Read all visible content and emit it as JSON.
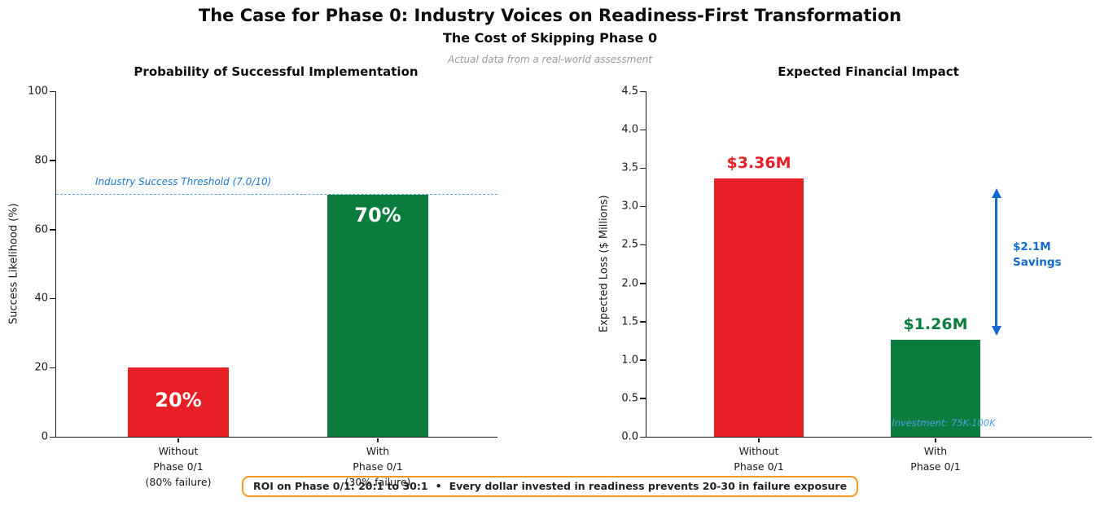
{
  "header": {
    "title": "The Case for Phase 0: Industry Voices on Readiness-First Transformation",
    "subtitle": "The Cost of Skipping Phase 0",
    "note": "Actual data from a real-world assessment"
  },
  "footer": {
    "text_left": "ROI on Phase 0/1: 20:1 to 30:1",
    "separator": "•",
    "text_right": "Every dollar invested in readiness prevents 20-30 in failure exposure",
    "border_color": "#f79820"
  },
  "chart_data": [
    {
      "type": "bar",
      "title": "Probability of Successful Implementation",
      "ylabel": "Success Likelihood (%)",
      "ylim": [
        0,
        100
      ],
      "yticks": [
        "0",
        "20",
        "40",
        "60",
        "80",
        "100"
      ],
      "categories": [
        "Without\nPhase 0/1\n(80% failure)",
        "With\nPhase 0/1\n(30% failure)"
      ],
      "values": [
        20,
        70
      ],
      "bar_labels": [
        "20%",
        "70%"
      ],
      "bar_colors": [
        "#e81e26",
        "#0a7d3e"
      ],
      "grid": false,
      "threshold": {
        "value": 70,
        "label": "Industry Success Threshold (7.0/10)",
        "text_color": "#187bcd",
        "line_color": "#55a5dc"
      }
    },
    {
      "type": "bar",
      "title": "Expected Financial Impact",
      "ylabel": "Expected Loss ($ Millions)",
      "ylim": [
        0,
        4.5
      ],
      "yticks": [
        "0.0",
        "0.5",
        "1.0",
        "1.5",
        "2.0",
        "2.5",
        "3.0",
        "3.5",
        "4.0",
        "4.5"
      ],
      "categories": [
        "Without\nPhase 0/1",
        "With\nPhase 0/1"
      ],
      "values": [
        3.36,
        1.26
      ],
      "bar_labels": [
        "$3.36M",
        "$1.26M"
      ],
      "bar_colors": [
        "#e81e26",
        "#0a7d3e"
      ],
      "label_colors": [
        "#e81e26",
        "#0a7d3e"
      ],
      "grid": false,
      "annotations": {
        "savings": {
          "label": "$2.1M\nSavings",
          "color": "#136bce"
        },
        "investment": {
          "label": "Investment: 75K-100K",
          "color": "#4fa0e0"
        }
      }
    }
  ]
}
